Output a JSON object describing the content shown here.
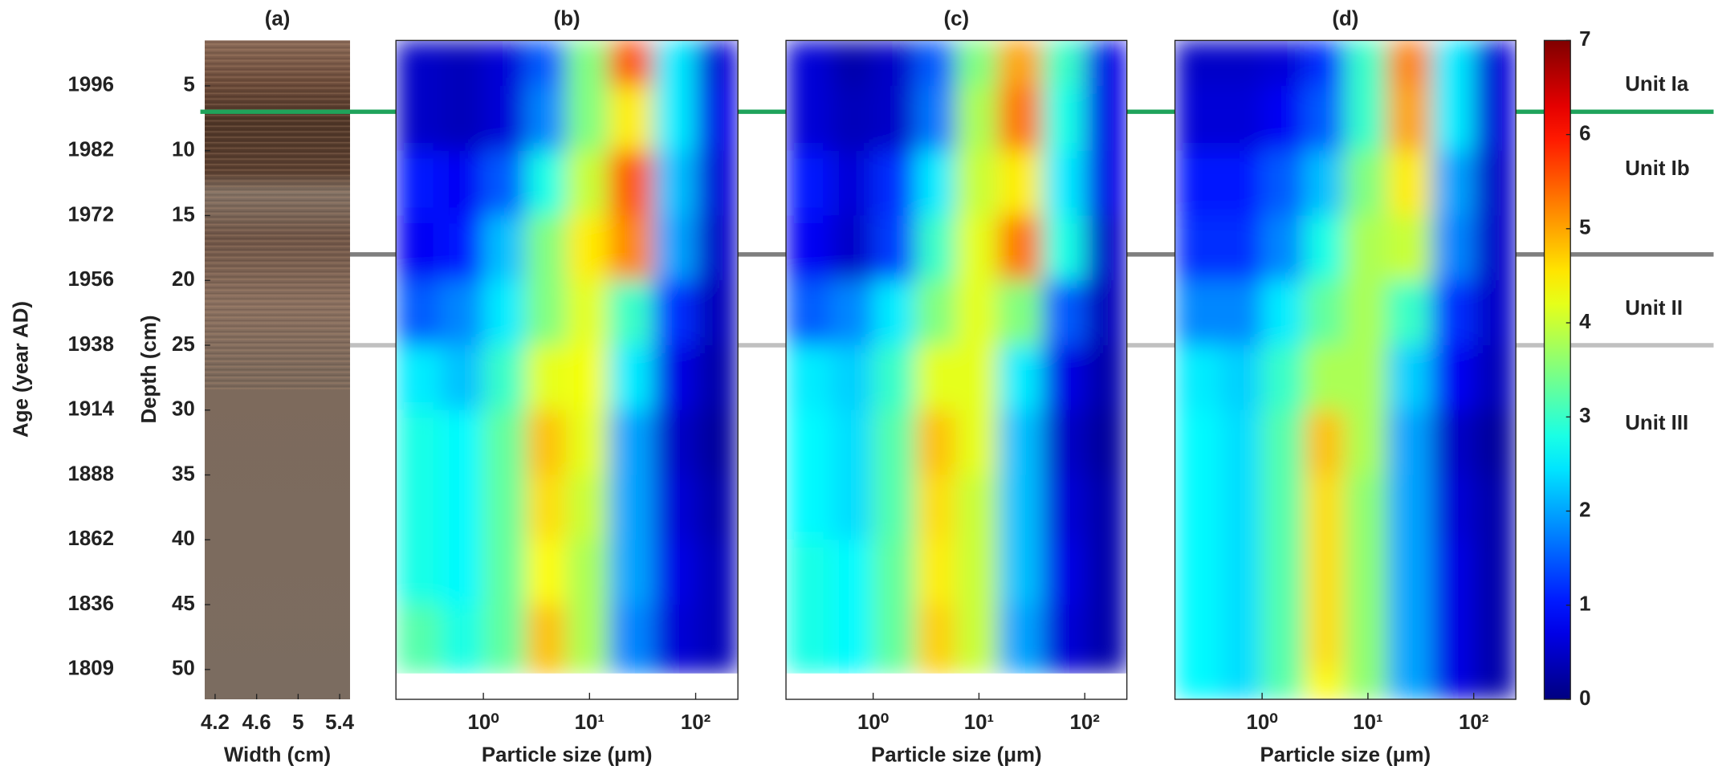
{
  "chart_data": [
    {
      "type": "core",
      "title": "(a)",
      "xlabel": "Width (cm)",
      "xlim": [
        4.1,
        5.5
      ],
      "xticks": [
        4.2,
        4.6,
        5,
        5.4
      ],
      "ylabel": "Depth (cm)",
      "ylim": [
        1.5,
        52.3
      ],
      "yticks": [
        5,
        10,
        15,
        20,
        25,
        30,
        35,
        40,
        45,
        50
      ],
      "age_label": "Age (year AD)",
      "ages": [
        1996,
        1982,
        1972,
        1956,
        1938,
        1914,
        1888,
        1862,
        1836,
        1809
      ],
      "boundaries": [
        {
          "depth": 7,
          "color": "#1fa35b"
        },
        {
          "depth": 18,
          "color": "#7f7f7f"
        },
        {
          "depth": 25,
          "color": "#c0c0c0"
        }
      ],
      "units": [
        "Unit Ia",
        "Unit Ib",
        "Unit II",
        "Unit III"
      ]
    },
    {
      "type": "heatmap",
      "title": "(b)",
      "xlabel": "Particle size (μm)",
      "log_x": true,
      "colormap": "jet",
      "clim": [
        0,
        7
      ],
      "xlim": [
        0.15,
        250
      ],
      "xticks": [
        {
          "value": 1,
          "label": "10⁰"
        },
        {
          "value": 10,
          "label": "10¹"
        },
        {
          "value": 100,
          "label": "10²"
        }
      ],
      "ylim": [
        1.5,
        52.3
      ],
      "x_bins": [
        0.15,
        0.4,
        1,
        2.5,
        6,
        15,
        40,
        100,
        250
      ],
      "y_bins": [
        1.5,
        5,
        10,
        15,
        20,
        25,
        30,
        35,
        40,
        45,
        50.3
      ],
      "values": [
        [
          0.5,
          0.4,
          0.6,
          1.5,
          3.5,
          5.5,
          2.5,
          0.6
        ],
        [
          0.5,
          0.4,
          0.6,
          1.8,
          3.5,
          4.5,
          2.5,
          0.7
        ],
        [
          1.0,
          0.8,
          1.5,
          2.8,
          4.0,
          5.5,
          2.2,
          0.6
        ],
        [
          0.8,
          1.0,
          2.2,
          3.5,
          4.5,
          5.2,
          2.0,
          0.5
        ],
        [
          1.5,
          1.8,
          2.5,
          3.5,
          4.2,
          3.0,
          1.2,
          0.4
        ],
        [
          2.5,
          2.2,
          3.0,
          4.2,
          4.3,
          2.5,
          0.7,
          0.3
        ],
        [
          2.8,
          2.6,
          3.3,
          4.8,
          4.2,
          2.0,
          0.5,
          0.2
        ],
        [
          2.8,
          2.6,
          3.3,
          4.6,
          4.0,
          2.0,
          0.6,
          0.3
        ],
        [
          2.8,
          2.6,
          3.3,
          4.4,
          3.8,
          2.0,
          0.7,
          0.4
        ],
        [
          3.2,
          2.8,
          3.3,
          4.8,
          3.8,
          1.8,
          0.6,
          0.4
        ]
      ]
    },
    {
      "type": "heatmap",
      "title": "(c)",
      "xlabel": "Particle size (μm)",
      "log_x": true,
      "colormap": "jet",
      "clim": [
        0,
        7
      ],
      "xlim": [
        0.15,
        250
      ],
      "xticks": [
        {
          "value": 1,
          "label": "10⁰"
        },
        {
          "value": 10,
          "label": "10¹"
        },
        {
          "value": 100,
          "label": "10²"
        }
      ],
      "ylim": [
        1.5,
        52.3
      ],
      "x_bins": [
        0.15,
        0.4,
        1,
        2.5,
        6,
        15,
        40,
        100,
        250
      ],
      "y_bins": [
        1.5,
        5,
        10,
        15,
        20,
        25,
        30,
        35,
        40,
        45,
        50.3
      ],
      "values": [
        [
          0.6,
          0.3,
          0.5,
          1.5,
          3.5,
          5.0,
          3.0,
          0.7
        ],
        [
          0.6,
          0.4,
          0.5,
          1.7,
          3.8,
          5.3,
          2.8,
          0.7
        ],
        [
          1.0,
          0.6,
          1.2,
          2.5,
          4.0,
          4.5,
          2.5,
          0.7
        ],
        [
          0.8,
          0.5,
          1.3,
          3.0,
          4.2,
          5.3,
          2.8,
          0.5
        ],
        [
          1.5,
          1.8,
          2.5,
          3.5,
          4.2,
          3.5,
          1.5,
          0.4
        ],
        [
          2.5,
          2.3,
          3.0,
          4.2,
          4.2,
          2.5,
          0.7,
          0.3
        ],
        [
          2.6,
          2.4,
          3.2,
          4.8,
          4.2,
          2.2,
          0.5,
          0.2
        ],
        [
          2.6,
          2.4,
          3.2,
          4.6,
          4.0,
          2.2,
          0.6,
          0.3
        ],
        [
          2.8,
          2.6,
          3.3,
          4.5,
          4.0,
          2.2,
          0.7,
          0.3
        ],
        [
          2.8,
          2.6,
          3.3,
          4.7,
          4.0,
          2.0,
          0.6,
          0.3
        ]
      ]
    },
    {
      "type": "heatmap",
      "title": "(d)",
      "xlabel": "Particle size (μm)",
      "log_x": true,
      "colormap": "jet",
      "clim": [
        0,
        7
      ],
      "xlim": [
        0.15,
        250
      ],
      "xticks": [
        {
          "value": 1,
          "label": "10⁰"
        },
        {
          "value": 10,
          "label": "10¹"
        },
        {
          "value": 100,
          "label": "10²"
        }
      ],
      "ylim": [
        1.5,
        52.3
      ],
      "x_bins": [
        0.15,
        0.4,
        1,
        2.5,
        6,
        15,
        40,
        100,
        250
      ],
      "y_bins": [
        1.5,
        5,
        10,
        15,
        20,
        25,
        30,
        35,
        40,
        45,
        50,
        52.3
      ],
      "values": [
        [
          0.5,
          0.5,
          0.6,
          1.2,
          3.0,
          5.2,
          2.5,
          0.6
        ],
        [
          0.6,
          0.6,
          0.8,
          1.5,
          3.0,
          5.0,
          2.5,
          0.6
        ],
        [
          1.0,
          1.0,
          1.5,
          2.2,
          3.5,
          4.5,
          2.0,
          0.5
        ],
        [
          1.2,
          1.2,
          1.8,
          2.8,
          3.8,
          4.0,
          1.8,
          0.5
        ],
        [
          1.8,
          1.8,
          2.5,
          3.3,
          3.8,
          3.0,
          1.2,
          0.5
        ],
        [
          2.5,
          2.3,
          3.0,
          3.8,
          3.8,
          2.3,
          0.8,
          0.4
        ],
        [
          2.6,
          2.4,
          3.2,
          4.8,
          3.8,
          2.0,
          0.5,
          0.2
        ],
        [
          2.6,
          2.4,
          3.2,
          4.6,
          3.6,
          2.0,
          0.6,
          0.3
        ],
        [
          2.6,
          2.4,
          3.2,
          4.6,
          3.6,
          2.0,
          0.7,
          0.3
        ],
        [
          2.6,
          2.4,
          3.2,
          4.6,
          3.6,
          2.0,
          0.7,
          0.3
        ],
        [
          2.6,
          2.4,
          3.2,
          4.4,
          3.6,
          2.0,
          0.7,
          0.3
        ]
      ]
    },
    {
      "type": "colorbar",
      "colormap": "jet",
      "ylim": [
        0,
        7
      ],
      "yticks": [
        0,
        1,
        2,
        3,
        4,
        5,
        6,
        7
      ]
    }
  ]
}
